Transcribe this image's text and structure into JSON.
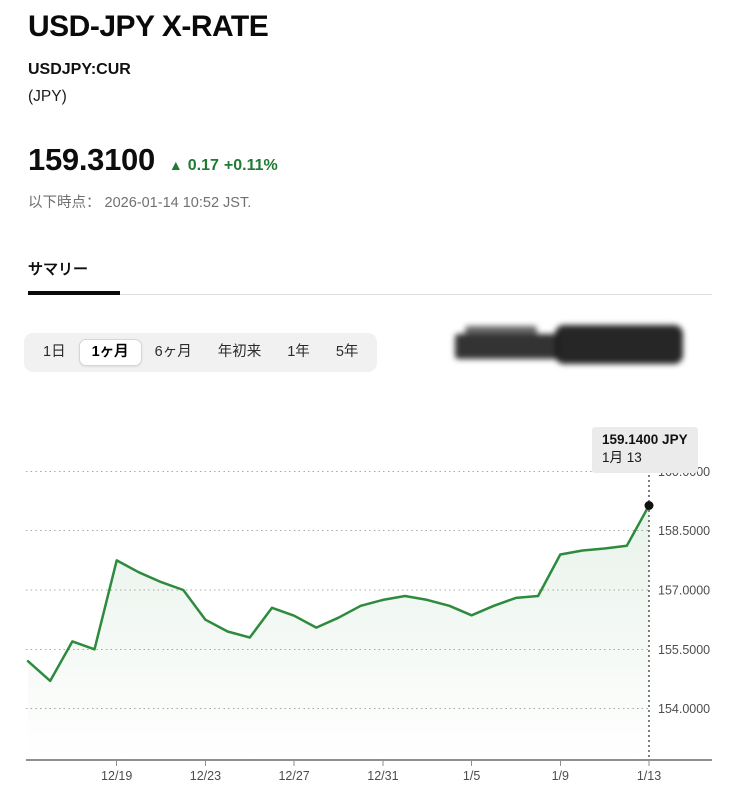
{
  "header": {
    "title": "USD-JPY X-RATE",
    "ticker": "USDJPY:CUR",
    "currency_label": "(JPY)"
  },
  "quote": {
    "price": "159.3100",
    "direction_arrow": "▲",
    "change": "0.17",
    "change_percent": "+0.11%",
    "as_of": "以下時点： 2026-01-14 10:52 JST."
  },
  "tabs": {
    "summary_label": "サマリー"
  },
  "range_selector": {
    "options": [
      {
        "label": "1日",
        "selected": false
      },
      {
        "label": "1ヶ月",
        "selected": true
      },
      {
        "label": "6ヶ月",
        "selected": false
      },
      {
        "label": "年初来",
        "selected": false
      },
      {
        "label": "1年",
        "selected": false
      },
      {
        "label": "5年",
        "selected": false
      }
    ]
  },
  "chart_tooltip": {
    "value": "159.1400 JPY",
    "date": "1月 13"
  },
  "colors": {
    "line_green": "#2e8b3e",
    "change_green": "#1f7a33",
    "tooltip_bg": "#ebebeb",
    "axis_text": "#4d4d4d",
    "grid_gray": "#a9a9a9"
  },
  "chart_data": {
    "type": "area",
    "series": [
      {
        "name": "USDJPY:CUR",
        "values": [
          155.2,
          154.7,
          155.7,
          155.5,
          157.75,
          157.45,
          157.2,
          157.0,
          156.25,
          155.95,
          155.8,
          156.55,
          156.35,
          156.05,
          156.3,
          156.6,
          156.75,
          156.85,
          156.75,
          156.6,
          156.36,
          156.6,
          156.8,
          156.85,
          157.9,
          158.0,
          158.05,
          158.12,
          159.14
        ]
      }
    ],
    "x_tick_indices": [
      4,
      8,
      12,
      16,
      20,
      24,
      28
    ],
    "x_tick_labels": [
      "12/19",
      "12/23",
      "12/27",
      "12/31",
      "1/5",
      "1/9",
      "1/13"
    ],
    "y_tick_values": [
      160.0,
      158.5,
      157.0,
      155.5,
      154.0
    ],
    "y_tick_labels": [
      "160.0000",
      "158.5000",
      "157.0000",
      "155.5000",
      "154.0000"
    ],
    "ylim": [
      152.7,
      160.3
    ],
    "grid": "dotted-horizontal",
    "legend": "none",
    "last_point": {
      "value": 159.14,
      "label": "159.1400 JPY",
      "date_label": "1月 13",
      "marker": "black-dot",
      "crosshair": "dotted-vertical"
    }
  }
}
